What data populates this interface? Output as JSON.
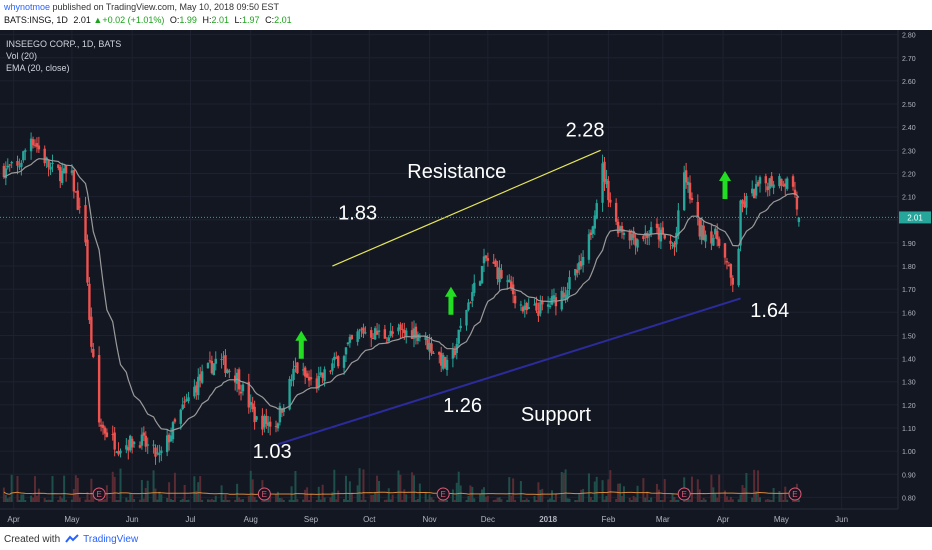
{
  "header": {
    "user": "whynotmoe",
    "published": "published on TradingView.com, May 10, 2018 09:50 EST",
    "symbol": "BATS:INSG, 1D",
    "last": "2.01",
    "change": "+0.02 (+1.01%)",
    "o_label": "O:",
    "o": "1.99",
    "h_label": "H:",
    "h": "2.01",
    "l_label": "L:",
    "l": "1.97",
    "c_label": "C:",
    "c": "2.01"
  },
  "legend": {
    "series_title": "INSEEGO CORP., 1D, BATS",
    "vol": "Vol (20)",
    "ema": "EMA (20, close)"
  },
  "annotations": {
    "resistance": "Resistance",
    "support": "Support",
    "p228": "2.28",
    "p183": "1.83",
    "p164": "1.64",
    "p126": "1.26",
    "p103": "1.03"
  },
  "footer": {
    "created": "Created with",
    "brand": "TradingView"
  },
  "colors": {
    "background": "#131722",
    "up": "#26a69a",
    "down": "#ef5350",
    "ema": "#9a9a9a",
    "resistance_line": "#e6e65a",
    "support_line": "#2b2b9c",
    "arrow": "#22dd22",
    "last_price": "#26a69a",
    "volume_ma": "#d9893a",
    "earnings": "#e05a78"
  },
  "icons": [
    "tradingview-logo-icon",
    "earnings-marker-icon",
    "arrow-up-icon"
  ],
  "chart_data": {
    "type": "candlestick",
    "title": "INSEEGO CORP., 1D, BATS",
    "x_ticks": [
      "Apr",
      "May",
      "Jun",
      "Jul",
      "Aug",
      "Sep",
      "Oct",
      "Nov",
      "Dec",
      "2018",
      "Feb",
      "Mar",
      "Apr",
      "May",
      "Jun"
    ],
    "y_ticks": [
      "2.80",
      "2.70",
      "2.60",
      "2.50",
      "2.40",
      "2.30",
      "2.20",
      "2.10",
      "2.00",
      "1.90",
      "1.80",
      "1.70",
      "1.60",
      "1.50",
      "1.40",
      "1.30",
      "1.20",
      "1.10",
      "1.00",
      "0.90",
      "0.80"
    ],
    "ylim": [
      0.75,
      2.82
    ],
    "last_price": "2.01",
    "price_path": [
      [
        "Mar 27, 2017",
        2.22
      ],
      [
        "Apr 3, 2017",
        2.22
      ],
      [
        "Apr 10, 2017",
        2.36
      ],
      [
        "Apr 20, 2017",
        2.22
      ],
      [
        "May 1, 2017",
        2.18
      ],
      [
        "May 8, 2017",
        1.92
      ],
      [
        "May 10, 2017",
        1.55
      ],
      [
        "May 15, 2017",
        1.12
      ],
      [
        "May 25, 2017",
        1.02
      ],
      [
        "Jun 5, 2017",
        1.05
      ],
      [
        "Jun 15, 2017",
        0.97
      ],
      [
        "Jun 25, 2017",
        1.15
      ],
      [
        "Jul 5, 2017",
        1.3
      ],
      [
        "Jul 15, 2017",
        1.4
      ],
      [
        "Jul 25, 2017",
        1.32
      ],
      [
        "Aug 4, 2017",
        1.13
      ],
      [
        "Aug 14, 2017",
        1.12
      ],
      [
        "Aug 24, 2017",
        1.36
      ],
      [
        "Sep 3, 2017",
        1.28
      ],
      [
        "Sep 15, 2017",
        1.4
      ],
      [
        "Sep 27, 2017",
        1.52
      ],
      [
        "Oct 10, 2017",
        1.5
      ],
      [
        "Oct 25, 2017",
        1.52
      ],
      [
        "Nov 5, 2017",
        1.42
      ],
      [
        "Nov 11, 2017",
        1.35
      ],
      [
        "Nov 20, 2017",
        1.62
      ],
      [
        "Nov 30, 2017",
        1.83
      ],
      [
        "Dec 10, 2017",
        1.74
      ],
      [
        "Dec 20, 2017",
        1.6
      ],
      [
        "Dec 31, 2017",
        1.62
      ],
      [
        "Jan 10, 2018",
        1.7
      ],
      [
        "Jan 20, 2018",
        1.82
      ],
      [
        "Jan 25, 2018",
        2.05
      ],
      [
        "Jan 29, 2018",
        2.22
      ],
      [
        "Feb 5, 2018",
        1.98
      ],
      [
        "Feb 15, 2018",
        1.92
      ],
      [
        "Feb 25, 2018",
        1.95
      ],
      [
        "Mar 7, 2018",
        1.88
      ],
      [
        "Mar 12, 2018",
        2.2
      ],
      [
        "Mar 20, 2018",
        1.95
      ],
      [
        "Mar 30, 2018",
        1.92
      ],
      [
        "Apr 5, 2018",
        1.74
      ],
      [
        "Apr 8, 2018",
        1.72
      ],
      [
        "Apr 10, 2018",
        2.05
      ],
      [
        "Apr 20, 2018",
        2.15
      ],
      [
        "Apr 30, 2018",
        2.18
      ],
      [
        "May 7, 2018",
        2.15
      ],
      [
        "May 10, 2018",
        2.01
      ]
    ],
    "lines": [
      {
        "name": "Resistance",
        "from": [
          "Sep 12, 2017",
          1.8
        ],
        "to": [
          "Jan 28, 2018",
          2.3
        ]
      },
      {
        "name": "Support",
        "from": [
          "Aug 15, 2017",
          1.03
        ],
        "to": [
          "Apr 10, 2018",
          1.66
        ]
      }
    ],
    "price_labels": [
      {
        "text": "2.28",
        "date": "Jan 20, 2018",
        "price": 2.36
      },
      {
        "text": "1.83",
        "date": "Sep 25, 2017",
        "price": 2.0
      },
      {
        "text": "1.64",
        "date": "Apr 25, 2018",
        "price": 1.58
      },
      {
        "text": "1.26",
        "date": "Nov 18, 2017",
        "price": 1.17
      },
      {
        "text": "1.03",
        "date": "Aug 12, 2017",
        "price": 0.97
      }
    ],
    "arrows": [
      {
        "date": "Aug 27, 2017",
        "price": 1.46
      },
      {
        "date": "Nov 12, 2017",
        "price": 1.65
      },
      {
        "date": "Apr 2, 2018",
        "price": 2.15
      }
    ],
    "earnings_markers": [
      "May 15, 2017",
      "Aug 8, 2017",
      "Nov 8, 2017",
      "Mar 12, 2018",
      "May 8, 2018"
    ],
    "grid": true
  }
}
